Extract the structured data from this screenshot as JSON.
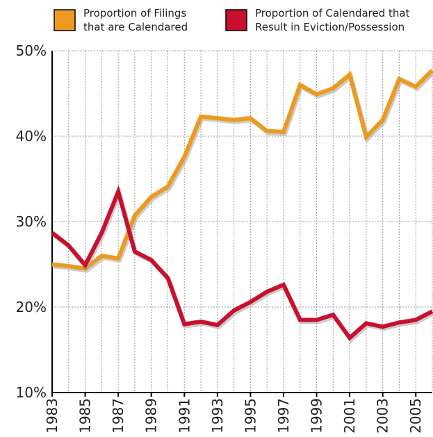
{
  "chart_data": {
    "type": "line",
    "x": [
      1983,
      1984,
      1985,
      1986,
      1987,
      1988,
      1989,
      1990,
      1991,
      1992,
      1993,
      1994,
      1995,
      1996,
      1997,
      1998,
      1999,
      2000,
      2001,
      2002,
      2003,
      2004,
      2005,
      2006
    ],
    "series": [
      {
        "name": "Proportion of Filings that are Calendared",
        "color": "#ec9a1f",
        "values": [
          25.0,
          24.8,
          24.5,
          26.0,
          25.7,
          30.7,
          32.9,
          34.1,
          37.6,
          42.3,
          42.1,
          41.9,
          42.1,
          40.6,
          40.5,
          46.0,
          44.9,
          45.6,
          47.2,
          39.9,
          41.9,
          46.7,
          45.8,
          47.7
        ]
      },
      {
        "name": "Proportion of Calendared that Result in Eviction/Possession",
        "color": "#c8102e",
        "values": [
          28.7,
          27.2,
          24.9,
          28.7,
          33.5,
          26.5,
          25.5,
          23.4,
          18.0,
          18.3,
          17.9,
          19.6,
          20.6,
          21.8,
          22.6,
          18.5,
          18.5,
          19.1,
          16.4,
          18.1,
          17.7,
          18.2,
          18.5,
          19.5
        ]
      }
    ],
    "xlim": [
      1983,
      2006
    ],
    "xticks": [
      1983,
      1985,
      1987,
      1989,
      1991,
      1993,
      1995,
      1997,
      1999,
      2001,
      2003,
      2005
    ],
    "ylim": [
      10,
      50
    ],
    "yticks": [
      {
        "value": 10,
        "label": "10%"
      },
      {
        "value": 20,
        "label": "20%"
      },
      {
        "value": 30,
        "label": "30%"
      },
      {
        "value": 40,
        "label": "40%"
      },
      {
        "value": 50,
        "label": "50%"
      }
    ],
    "grid": true
  }
}
